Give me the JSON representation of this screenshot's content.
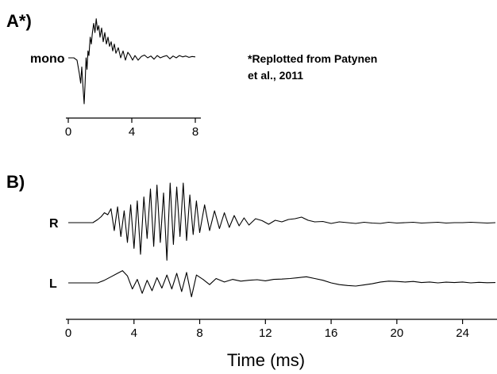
{
  "chart_data": [
    {
      "type": "line",
      "panel_label": "A*)",
      "annotation_lines": [
        "*Replotted from Patynen",
        "et al., 2011"
      ],
      "xlim": [
        0,
        8
      ],
      "xticks": [
        0,
        4,
        8
      ],
      "xtick_labels": [
        "0",
        "4",
        "8"
      ],
      "series": [
        {
          "name": "mono",
          "x": [
            0,
            0.35,
            0.55,
            0.7,
            0.78,
            0.85,
            0.92,
            1.0,
            1.06,
            1.12,
            1.18,
            1.24,
            1.3,
            1.38,
            1.45,
            1.52,
            1.6,
            1.68,
            1.76,
            1.84,
            1.92,
            2.0,
            2.1,
            2.2,
            2.3,
            2.4,
            2.5,
            2.6,
            2.7,
            2.8,
            2.9,
            3.0,
            3.15,
            3.3,
            3.45,
            3.6,
            3.75,
            3.9,
            4.05,
            4.2,
            4.4,
            4.6,
            4.8,
            5.0,
            5.2,
            5.4,
            5.6,
            5.8,
            6.0,
            6.2,
            6.4,
            6.6,
            6.8,
            7.0,
            7.2,
            7.4,
            7.6,
            7.8,
            8.0
          ],
          "values": [
            0,
            0,
            -0.05,
            -0.35,
            -0.55,
            -0.2,
            -0.6,
            -1.0,
            -0.55,
            0.0,
            -0.25,
            0.15,
            0.05,
            0.45,
            0.3,
            0.55,
            0.75,
            0.55,
            0.85,
            0.6,
            0.7,
            0.45,
            0.65,
            0.35,
            0.55,
            0.3,
            0.45,
            0.25,
            0.35,
            0.15,
            0.3,
            0.1,
            0.22,
            0.0,
            0.15,
            -0.05,
            0.12,
            0.05,
            -0.05,
            0.05,
            -0.05,
            0.03,
            0.06,
            0.0,
            0.04,
            -0.03,
            0.05,
            0.0,
            0.03,
            0.05,
            -0.02,
            0.04,
            0.0,
            0.05,
            0.02,
            0.04,
            0.01,
            0.03,
            0.02
          ]
        }
      ]
    },
    {
      "type": "line",
      "panel_label": "B)",
      "xlabel": "Time (ms)",
      "xlim": [
        0,
        26
      ],
      "xticks": [
        0,
        4,
        8,
        12,
        16,
        20,
        24
      ],
      "xtick_labels": [
        "0",
        "4",
        "8",
        "12",
        "16",
        "20",
        "24"
      ],
      "series": [
        {
          "name": "R",
          "x": [
            0,
            1.5,
            1.8,
            2.0,
            2.2,
            2.4,
            2.6,
            2.8,
            3.0,
            3.2,
            3.4,
            3.6,
            3.8,
            4.0,
            4.2,
            4.4,
            4.6,
            4.8,
            5.0,
            5.2,
            5.4,
            5.6,
            5.8,
            6.0,
            6.2,
            6.4,
            6.6,
            6.8,
            7.0,
            7.2,
            7.4,
            7.6,
            7.8,
            8.0,
            8.3,
            8.6,
            8.9,
            9.2,
            9.5,
            9.8,
            10.1,
            10.4,
            10.7,
            11.0,
            11.4,
            11.8,
            12.2,
            12.6,
            13.0,
            13.4,
            13.8,
            14.2,
            14.6,
            15.0,
            15.5,
            16.0,
            16.5,
            17.0,
            17.5,
            18.0,
            18.5,
            19.0,
            19.5,
            20.0,
            20.5,
            21.0,
            21.5,
            22.0,
            22.5,
            23.0,
            23.5,
            24.0,
            24.5,
            25.0,
            25.5,
            26.0
          ],
          "values": [
            0,
            0,
            0.08,
            0.15,
            0.25,
            0.2,
            0.35,
            -0.2,
            0.4,
            -0.35,
            0.3,
            -0.5,
            0.45,
            -0.65,
            0.55,
            -0.8,
            0.65,
            -0.4,
            0.85,
            -0.6,
            0.95,
            -0.5,
            0.75,
            -0.95,
            1.0,
            -0.55,
            0.9,
            -0.35,
            1.0,
            -0.45,
            0.7,
            -0.3,
            0.55,
            -0.25,
            0.45,
            -0.2,
            0.3,
            -0.15,
            0.25,
            -0.12,
            0.18,
            -0.08,
            0.12,
            -0.06,
            0.1,
            0.05,
            -0.04,
            0.06,
            0.02,
            0.08,
            0.1,
            0.14,
            0.06,
            0.02,
            0.03,
            -0.02,
            0.02,
            0.0,
            -0.02,
            0.01,
            -0.01,
            -0.02,
            0.01,
            -0.01,
            0.0,
            0.01,
            -0.01,
            0.0,
            0.01,
            -0.01,
            0.0,
            0.0,
            0.01,
            0.0,
            -0.01,
            0.0
          ]
        },
        {
          "name": "L",
          "x": [
            0,
            1.8,
            2.2,
            2.6,
            3.0,
            3.3,
            3.6,
            3.9,
            4.2,
            4.5,
            4.8,
            5.1,
            5.4,
            5.7,
            6.0,
            6.3,
            6.6,
            6.9,
            7.2,
            7.5,
            7.8,
            8.2,
            8.6,
            9.0,
            9.5,
            10.0,
            10.5,
            11.0,
            11.5,
            12.0,
            12.5,
            13.0,
            13.5,
            14.0,
            14.5,
            15.0,
            15.5,
            16.0,
            16.5,
            17.0,
            17.5,
            18.0,
            18.5,
            19.0,
            19.5,
            20.0,
            20.5,
            21.0,
            21.5,
            22.0,
            22.5,
            23.0,
            23.5,
            24.0,
            24.5,
            25.0,
            25.5,
            26.0
          ],
          "values": [
            0,
            0,
            0.15,
            0.35,
            0.55,
            0.7,
            0.4,
            -0.35,
            0.2,
            -0.6,
            0.15,
            -0.45,
            0.3,
            -0.3,
            0.45,
            -0.35,
            0.55,
            -0.5,
            0.6,
            -0.8,
            0.45,
            0.2,
            -0.1,
            0.25,
            0.05,
            0.2,
            0.1,
            0.15,
            0.18,
            0.12,
            0.2,
            0.22,
            0.25,
            0.3,
            0.35,
            0.25,
            0.15,
            0.0,
            -0.1,
            -0.15,
            -0.18,
            -0.12,
            -0.05,
            0.05,
            0.1,
            0.08,
            0.05,
            0.08,
            0.02,
            0.05,
            0.0,
            0.04,
            0.02,
            0.05,
            0.0,
            0.03,
            0.01,
            0.02
          ]
        }
      ]
    }
  ]
}
